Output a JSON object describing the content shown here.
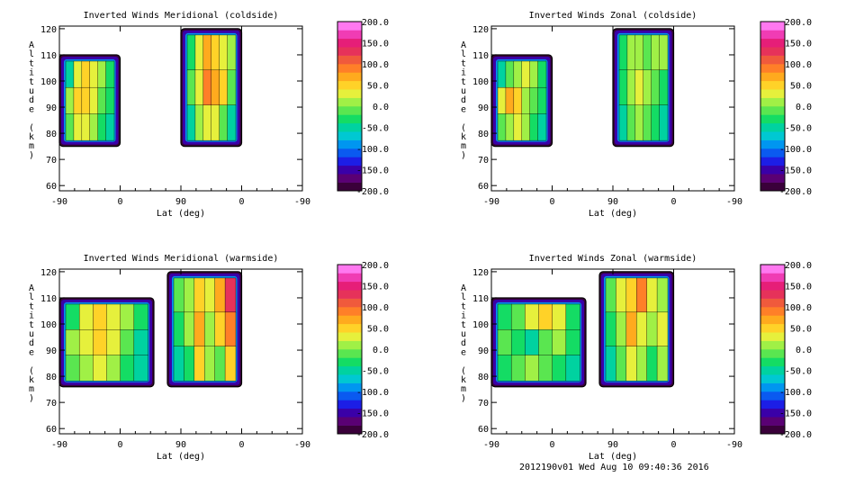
{
  "footer": "2012190v01 Wed Aug 10 09:40:36 2016",
  "colorbar": {
    "labels": [
      "200.0",
      "150.0",
      "100.0",
      "50.0",
      "0.0",
      "-50.0",
      "-100.0",
      "-150.0",
      "-200.0"
    ],
    "colors": [
      "#3a003a",
      "#5a0074",
      "#3a00a8",
      "#1c1ee6",
      "#0a5af0",
      "#0096f0",
      "#00c8d2",
      "#00d2a0",
      "#14dc64",
      "#5ae650",
      "#a0f046",
      "#e6f03c",
      "#ffd228",
      "#ffaa1e",
      "#ff7f28",
      "#f05a3c",
      "#e6325a",
      "#e61e78",
      "#f03cb4",
      "#ff78f0"
    ]
  },
  "chart_data": [
    {
      "type": "heatmap",
      "title": "Inverted Winds Meridional (coldside)",
      "xlabel": "Lat (deg)",
      "ylabel": "Altitude (km)",
      "xticks": [
        "-90",
        "0",
        "90",
        "0",
        "-90"
      ],
      "yticks": [
        "60",
        "70",
        "80",
        "90",
        "100",
        "110",
        "120"
      ],
      "ylim": [
        58,
        121
      ],
      "zlim": [
        -200,
        200
      ],
      "segments": [
        {
          "x": [
            -90,
            0
          ],
          "y": [
            75,
            110
          ],
          "field": [
            [
              -50,
              20,
              40,
              30,
              10,
              -40
            ],
            [
              10,
              40,
              50,
              30,
              -10,
              -40
            ],
            [
              -10,
              20,
              30,
              10,
              -30,
              -60
            ]
          ]
        },
        {
          "x": [
            90,
            0
          ],
          "y": [
            75,
            120
          ],
          "field": [
            [
              -40,
              20,
              60,
              40,
              20,
              10
            ],
            [
              -20,
              30,
              80,
              60,
              40,
              -20
            ],
            [
              -50,
              10,
              30,
              20,
              -10,
              -60
            ]
          ]
        }
      ]
    },
    {
      "type": "heatmap",
      "title": "Inverted Winds Zonal (coldside)",
      "xlabel": "Lat (deg)",
      "ylabel": "Altitude (km)",
      "xticks": [
        "-90",
        "0",
        "90",
        "0",
        "-90"
      ],
      "yticks": [
        "60",
        "70",
        "80",
        "90",
        "100",
        "110",
        "120"
      ],
      "ylim": [
        58,
        121
      ],
      "zlim": [
        -200,
        200
      ],
      "segments": [
        {
          "x": [
            -90,
            0
          ],
          "y": [
            75,
            110
          ],
          "field": [
            [
              -60,
              -20,
              10,
              20,
              0,
              -30
            ],
            [
              20,
              60,
              40,
              10,
              -10,
              -40
            ],
            [
              -20,
              10,
              20,
              0,
              -30,
              -60
            ]
          ]
        },
        {
          "x": [
            90,
            0
          ],
          "y": [
            75,
            120
          ],
          "field": [
            [
              -40,
              0,
              10,
              -10,
              0,
              10
            ],
            [
              -30,
              10,
              20,
              0,
              -20,
              -30
            ],
            [
              -50,
              -10,
              0,
              -20,
              -40,
              -60
            ]
          ]
        }
      ]
    },
    {
      "type": "heatmap",
      "title": "Inverted Winds Meridional (warmside)",
      "xlabel": "Lat (deg)",
      "ylabel": "Altitude (km)",
      "xticks": [
        "-90",
        "0",
        "90",
        "0",
        "-90"
      ],
      "yticks": [
        "60",
        "70",
        "80",
        "90",
        "100",
        "110",
        "120"
      ],
      "ylim": [
        58,
        121
      ],
      "zlim": [
        -200,
        200
      ],
      "segments": [
        {
          "x": [
            -90,
            50
          ],
          "y": [
            76,
            110
          ],
          "field": [
            [
              -40,
              20,
              40,
              20,
              0,
              -40
            ],
            [
              0,
              30,
              50,
              20,
              -20,
              -60
            ],
            [
              -20,
              10,
              20,
              0,
              -30,
              -60
            ]
          ]
        },
        {
          "x": [
            110,
            0
          ],
          "y": [
            76,
            120
          ],
          "field": [
            [
              -20,
              10,
              40,
              20,
              60,
              120
            ],
            [
              -40,
              0,
              60,
              10,
              40,
              80
            ],
            [
              -60,
              -30,
              40,
              0,
              -20,
              40
            ]
          ]
        }
      ]
    },
    {
      "type": "heatmap",
      "title": "Inverted Winds Zonal (warmside)",
      "xlabel": "Lat (deg)",
      "ylabel": "Altitude (km)",
      "xticks": [
        "-90",
        "0",
        "90",
        "0",
        "-90"
      ],
      "yticks": [
        "60",
        "70",
        "80",
        "90",
        "100",
        "110",
        "120"
      ],
      "ylim": [
        58,
        121
      ],
      "zlim": [
        -200,
        200
      ],
      "segments": [
        {
          "x": [
            -90,
            50
          ],
          "y": [
            76,
            110
          ],
          "field": [
            [
              -40,
              -10,
              20,
              40,
              20,
              -30
            ],
            [
              -20,
              -40,
              -60,
              -20,
              10,
              -40
            ],
            [
              -40,
              -20,
              0,
              -10,
              -30,
              -60
            ]
          ]
        },
        {
          "x": [
            110,
            0
          ],
          "y": [
            76,
            120
          ],
          "field": [
            [
              -20,
              20,
              40,
              80,
              30,
              10
            ],
            [
              -40,
              10,
              60,
              20,
              0,
              20
            ],
            [
              -60,
              -20,
              20,
              0,
              -30,
              0
            ]
          ]
        }
      ]
    }
  ]
}
